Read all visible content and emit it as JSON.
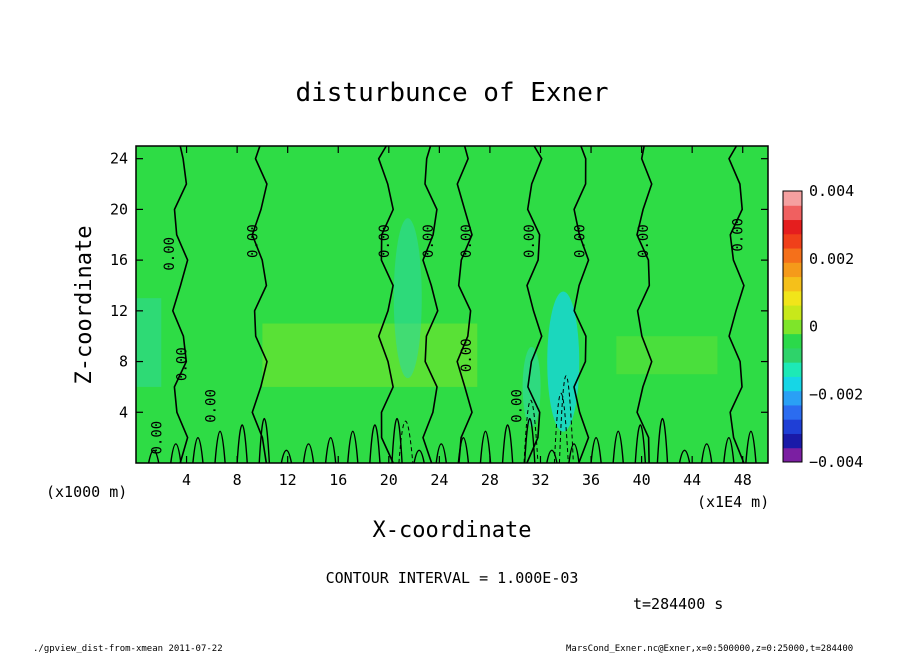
{
  "chart_data": {
    "type": "heatmap",
    "title": "disturbunce of Exner",
    "xlabel": "X-coordinate",
    "ylabel": "Z-coordinate",
    "x_unit_label": "(x1E4 m)",
    "y_unit_label": "(x1000 m)",
    "xlim": [
      0,
      50
    ],
    "ylim": [
      0,
      25
    ],
    "x_ticks": [
      4,
      8,
      12,
      16,
      20,
      24,
      28,
      32,
      36,
      40,
      44,
      48
    ],
    "y_ticks": [
      4,
      8,
      12,
      16,
      20,
      24
    ],
    "colorbar": {
      "range": [
        -0.004,
        0.004
      ],
      "tick_labels": [
        "0.004",
        "0.002",
        "0",
        "−0.002",
        "−0.004"
      ],
      "tick_values": [
        0.004,
        0.002,
        0,
        -0.002,
        -0.004
      ],
      "colors": [
        "#7b1fa2",
        "#1a1aa8",
        "#1f3fd6",
        "#2b6cf0",
        "#2aa0f5",
        "#16d6e6",
        "#1de9b6",
        "#2ed36a",
        "#2bd94a",
        "#7ee52a",
        "#c8e81a",
        "#f1e51a",
        "#f5c01a",
        "#f59a1a",
        "#f5701a",
        "#f0401a",
        "#e51e1e",
        "#f06060",
        "#f5a0a0"
      ]
    },
    "background_value_color": "#2edc45",
    "positive_band_color": "#7ee52a",
    "negative_band_color": "#2ed8a6",
    "contour_labels": [
      {
        "x": 3.0,
        "z": 16.5,
        "text": "0.00"
      },
      {
        "x": 9.6,
        "z": 17.5,
        "text": "0.00"
      },
      {
        "x": 20.0,
        "z": 17.5,
        "text": "0.00"
      },
      {
        "x": 23.5,
        "z": 17.5,
        "text": "0.00"
      },
      {
        "x": 26.5,
        "z": 17.5,
        "text": "0.00"
      },
      {
        "x": 31.5,
        "z": 17.5,
        "text": "0.00"
      },
      {
        "x": 35.5,
        "z": 17.5,
        "text": "0.00"
      },
      {
        "x": 40.5,
        "z": 17.5,
        "text": "0.00"
      },
      {
        "x": 48.0,
        "z": 18.0,
        "text": "0.00"
      },
      {
        "x": 26.5,
        "z": 8.5,
        "text": "0.00"
      },
      {
        "x": 30.5,
        "z": 4.5,
        "text": "0.00"
      },
      {
        "x": 4.0,
        "z": 7.8,
        "text": "0.00"
      },
      {
        "x": 6.3,
        "z": 4.5,
        "text": "0.00"
      },
      {
        "x": 2.0,
        "z": 2.0,
        "text": "0.00"
      }
    ]
  },
  "annotations": {
    "contour_interval": "CONTOUR INTERVAL = 1.000E-03",
    "time": "t=284400 s",
    "footer_left": "./gpview_dist-from-xmean  2011-07-22",
    "footer_right": "MarsCond_Exner.nc@Exner,x=0:500000,z=0:25000,t=284400"
  }
}
